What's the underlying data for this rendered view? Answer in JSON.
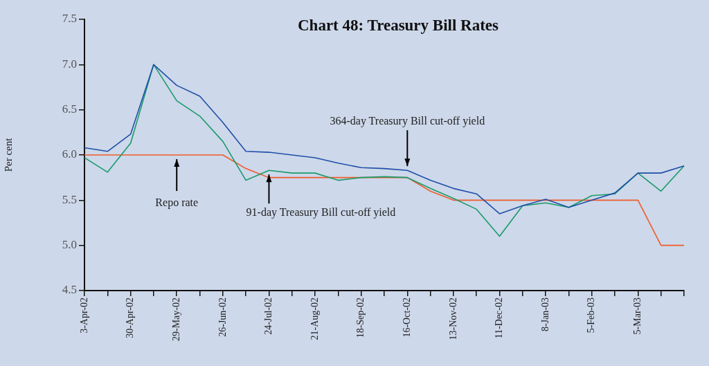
{
  "chart_data": {
    "type": "line",
    "title": "Chart 48: Treasury Bill Rates",
    "ylabel": "Per cent",
    "categories": [
      "3-Apr-02",
      null,
      "30-Apr-02",
      null,
      "29-May-02",
      null,
      "26-Jun-02",
      null,
      "24-Jul-02",
      null,
      "21-Aug-02",
      null,
      "18-Sep-02",
      null,
      "16-Oct-02",
      null,
      "13-Nov-02",
      null,
      "11-Dec-02",
      null,
      "8-Jan-03",
      null,
      "5-Feb-03",
      null,
      "5-Mar-03",
      null,
      null
    ],
    "series": [
      {
        "color": "#1f4fa8",
        "values": [
          6.08,
          6.04,
          6.23,
          7.0,
          6.77,
          6.65,
          6.36,
          6.04,
          6.03,
          6.0,
          5.97,
          5.91,
          5.86,
          5.85,
          5.83,
          5.72,
          5.63,
          5.57,
          5.35,
          5.44,
          5.51,
          5.42,
          5.5,
          5.58,
          5.8,
          5.8,
          5.88
        ]
      },
      {
        "color": "#1a9a6a",
        "values": [
          5.97,
          5.81,
          6.13,
          7.0,
          6.6,
          6.43,
          6.15,
          5.72,
          5.83,
          5.8,
          5.8,
          5.72,
          5.75,
          5.76,
          5.75,
          5.63,
          5.52,
          5.4,
          5.1,
          5.44,
          5.47,
          5.42,
          5.55,
          5.57,
          5.8,
          5.6,
          5.88
        ]
      },
      {
        "color": "#f05a28",
        "values": [
          6.0,
          6.0,
          6.0,
          6.0,
          6.0,
          6.0,
          6.0,
          5.85,
          5.75,
          5.75,
          5.75,
          5.75,
          5.75,
          5.75,
          5.75,
          5.6,
          5.5,
          5.5,
          5.5,
          5.5,
          5.5,
          5.5,
          5.5,
          5.5,
          5.5,
          5.0,
          5.0
        ]
      }
    ],
    "ylim": [
      4.5,
      7.5
    ],
    "yticks": [
      4.5,
      {
        "value": 5,
        "label": "5.0"
      },
      5.5,
      {
        "value": 6,
        "label": "6.0"
      },
      6.5,
      {
        "value": 7,
        "label": "7.0"
      },
      7.5
    ],
    "grid": false,
    "legend": false,
    "marker": "none",
    "line_style": "solid",
    "annotations": [
      {
        "text": "364-day Treasury Bill cut-off yield",
        "x": "16-Oct-02",
        "y": 5.83
      },
      {
        "text": "Repo rate",
        "x": "29-May-02",
        "y": 6.0
      },
      {
        "text": "91-day Treasury Bill cut-off yield",
        "x": "24-Jul-02",
        "y": 5.83
      }
    ]
  }
}
